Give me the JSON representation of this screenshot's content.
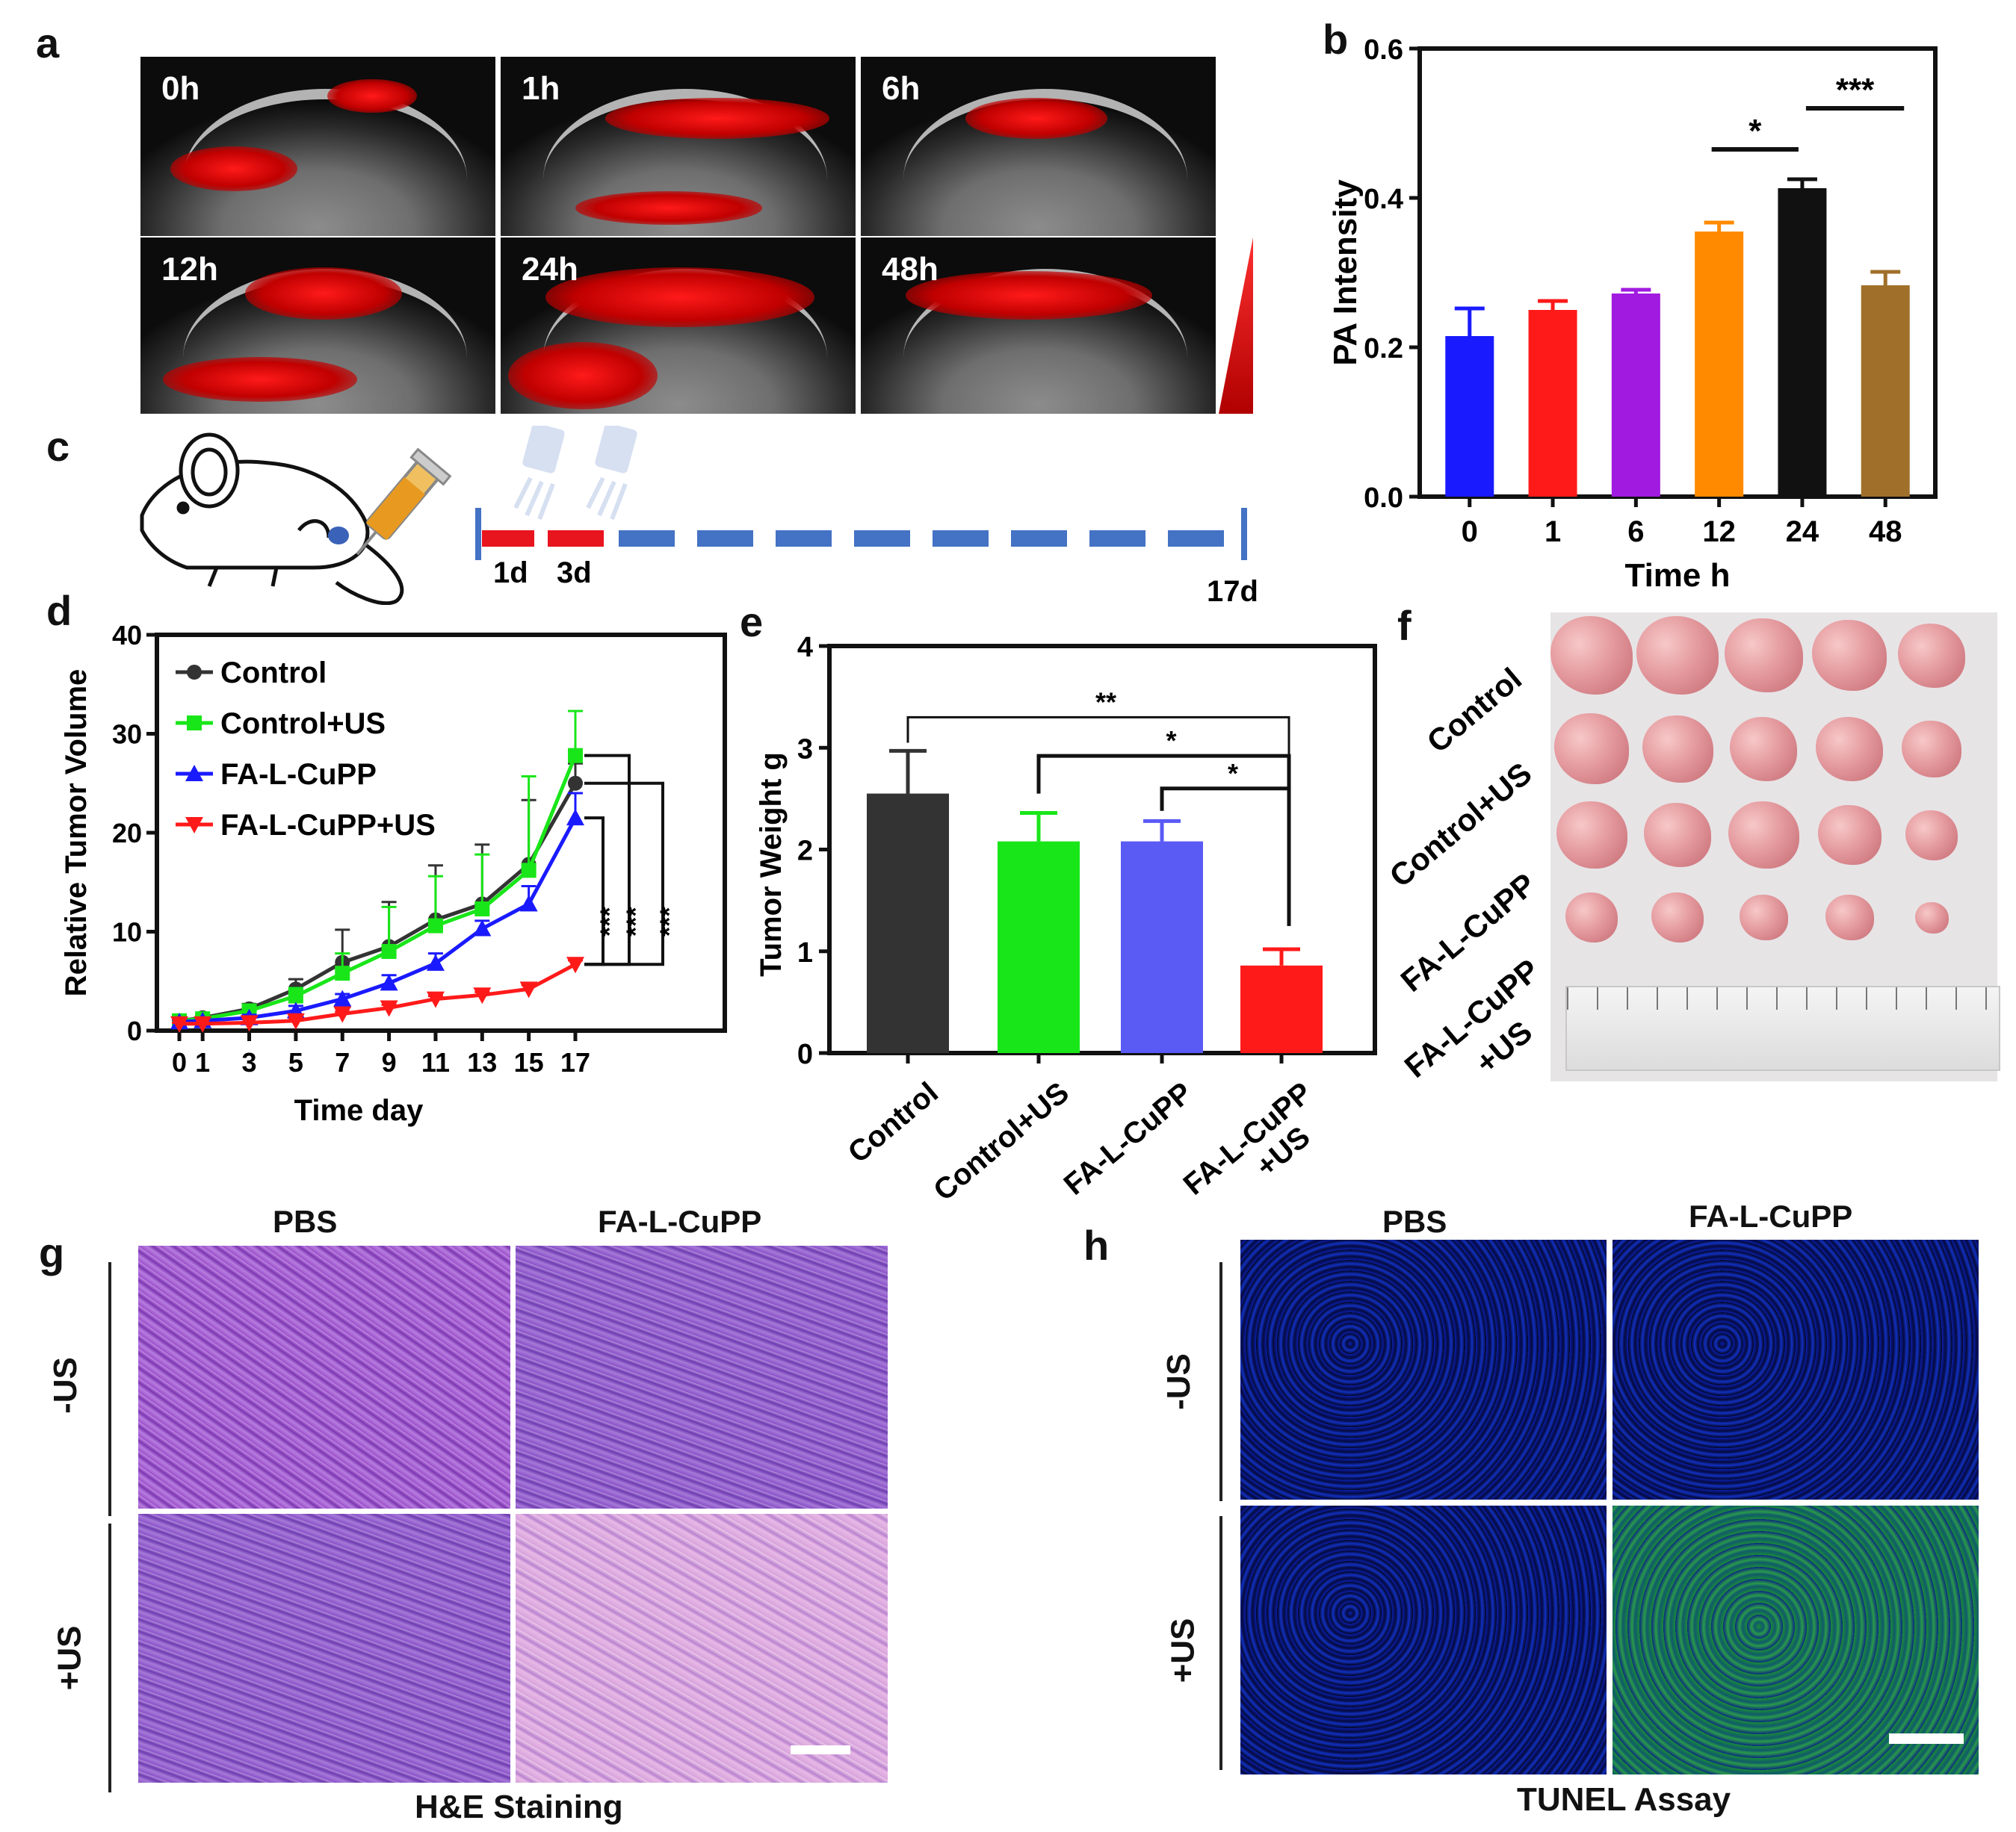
{
  "panel_labels": {
    "a": "a",
    "b": "b",
    "c": "c",
    "d": "d",
    "e": "e",
    "f": "f",
    "g": "g",
    "h": "h"
  },
  "panel_a": {
    "time_labels": [
      "0h",
      "1h",
      "6h",
      "12h",
      "24h",
      "48h"
    ]
  },
  "panel_c": {
    "day_labels": [
      "1d",
      "3d",
      "17d"
    ]
  },
  "panel_f": {
    "row_labels": [
      "Control",
      "Control+US",
      "FA-L-CuPP",
      "FA-L-CuPP",
      "+US"
    ]
  },
  "panel_g": {
    "col_labels": [
      "PBS",
      "FA-L-CuPP"
    ],
    "row_labels": [
      "-US",
      "+US"
    ],
    "caption": "H&E Staining"
  },
  "panel_h": {
    "col_labels": [
      "PBS",
      "FA-L-CuPP"
    ],
    "row_labels": [
      "-US",
      "+US"
    ],
    "caption": "TUNEL Assay"
  },
  "colors": {
    "blue": "#1a1aff",
    "red": "#ff1a1a",
    "purple": "#a01ae0",
    "orange": "#ff8a00",
    "black": "#111111",
    "brown": "#a0702a",
    "dark_gray": "#333333",
    "green": "#19e619",
    "periwinkle": "#5a5af5",
    "timeline_red": "#e8141e",
    "timeline_blue": "#4472c4"
  },
  "chart_data": [
    {
      "id": "b",
      "type": "bar",
      "categories": [
        "0",
        "1",
        "6",
        "12",
        "24",
        "48"
      ],
      "values": [
        0.215,
        0.25,
        0.272,
        0.355,
        0.413,
        0.283
      ],
      "errors": [
        0.037,
        0.012,
        0.005,
        0.012,
        0.012,
        0.018
      ],
      "xlabel": "Time  h",
      "ylabel": "PA Intensity",
      "ylim": [
        0,
        0.6
      ],
      "yticks": [
        "0.0",
        "0.2",
        "0.4",
        "0.6"
      ],
      "significance": [
        {
          "from": "12",
          "to": "24",
          "label": "*"
        },
        {
          "from": "24",
          "to": "48",
          "label": "***"
        }
      ]
    },
    {
      "id": "d",
      "type": "line",
      "x": [
        0,
        1,
        3,
        5,
        7,
        9,
        11,
        13,
        15,
        17
      ],
      "xticks": [
        "0",
        "1",
        "3",
        "5",
        "7",
        "9",
        "11",
        "13",
        "15",
        "17"
      ],
      "series": [
        {
          "name": "Control",
          "marker": "circle",
          "values": [
            1,
            1.3,
            2.2,
            4.2,
            6.9,
            8.5,
            11.2,
            12.8,
            16.8,
            25.0
          ],
          "errors": [
            0.3,
            0.3,
            0.5,
            1.0,
            3.3,
            4.5,
            5.5,
            6.0,
            6.5,
            2.0
          ]
        },
        {
          "name": "Control+US",
          "marker": "square",
          "values": [
            1,
            1.2,
            2.0,
            3.5,
            5.8,
            8.0,
            10.6,
            12.3,
            16.2,
            27.8
          ],
          "errors": [
            0.3,
            0.3,
            0.4,
            0.8,
            2.0,
            4.5,
            5.0,
            5.5,
            9.5,
            4.5
          ]
        },
        {
          "name": "FA-L-CuPP",
          "marker": "triangle-up",
          "values": [
            0.9,
            1.0,
            1.3,
            2.0,
            3.2,
            4.8,
            6.8,
            10.3,
            12.8,
            21.5
          ],
          "errors": [
            0.2,
            0.2,
            0.3,
            0.5,
            0.5,
            0.8,
            1.0,
            0.8,
            1.8,
            2.5
          ]
        },
        {
          "name": "FA-L-CuPP+US",
          "marker": "triangle-down",
          "values": [
            0.7,
            0.7,
            0.8,
            1.0,
            1.7,
            2.3,
            3.2,
            3.6,
            4.2,
            6.7
          ],
          "errors": [
            0.1,
            0.1,
            0.1,
            0.2,
            0.2,
            0.3,
            0.3,
            0.3,
            0.4,
            0.4
          ]
        }
      ],
      "xlabel": "Time  day",
      "ylabel": "Relative Tumor Volume",
      "ylim": [
        0,
        40
      ],
      "yticks": [
        "0",
        "10",
        "20",
        "30",
        "40"
      ],
      "significance": [
        "***",
        "***",
        "***"
      ]
    },
    {
      "id": "e",
      "type": "bar",
      "categories": [
        "Control",
        "Control+US",
        "FA-L-CuPP",
        "FA-L-CuPP\n+US"
      ],
      "values": [
        2.55,
        2.08,
        2.08,
        0.86
      ],
      "errors": [
        0.42,
        0.28,
        0.2,
        0.16
      ],
      "ylabel": "Tumor Weight g",
      "ylim": [
        0,
        4
      ],
      "yticks": [
        "0",
        "1",
        "2",
        "3",
        "4"
      ],
      "significance": [
        {
          "from": "Control",
          "to": "FA-L-CuPP\n+US",
          "label": "**"
        },
        {
          "from": "Control+US",
          "to": "FA-L-CuPP\n+US",
          "label": "*"
        },
        {
          "from": "FA-L-CuPP",
          "to": "FA-L-CuPP\n+US",
          "label": "*"
        }
      ]
    }
  ]
}
